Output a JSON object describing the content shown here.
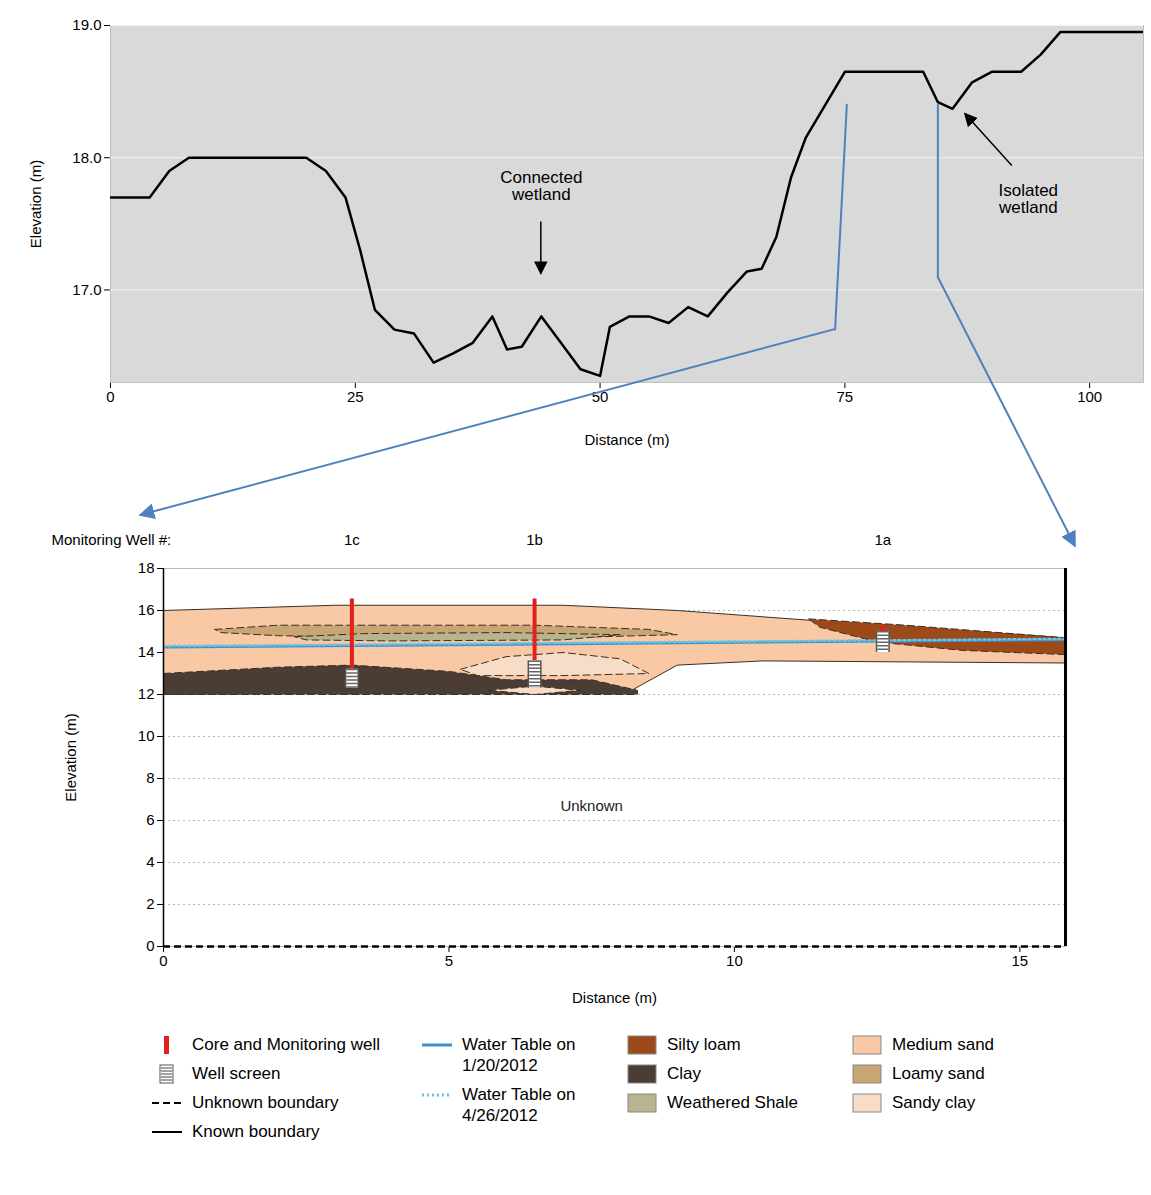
{
  "chart_data": [
    {
      "type": "line",
      "xlabel": "Distance (m)",
      "ylabel": "Elevation (m)",
      "xlim": [
        0,
        105.5
      ],
      "xticks": [
        0,
        25,
        50,
        75,
        100
      ],
      "ylim": [
        16.3,
        19
      ],
      "yticks": [
        17,
        18,
        19
      ],
      "grid": true,
      "color": "#000000",
      "x": [
        0,
        4,
        6,
        8,
        20,
        22,
        24,
        25.5,
        27,
        29,
        31,
        33,
        35,
        37,
        39,
        40.5,
        42,
        44,
        46,
        48,
        50,
        51,
        53,
        55,
        57,
        59,
        61,
        63,
        65,
        66.5,
        68,
        69.5,
        71,
        73,
        75,
        80,
        83,
        84.5,
        86,
        88,
        90,
        93,
        95,
        97,
        100,
        105.5
      ],
      "values": [
        17.7,
        17.7,
        17.9,
        18.0,
        18.0,
        17.9,
        17.7,
        17.3,
        16.85,
        16.7,
        16.67,
        16.45,
        16.52,
        16.6,
        16.8,
        16.55,
        16.57,
        16.8,
        16.6,
        16.4,
        16.35,
        16.72,
        16.8,
        16.8,
        16.75,
        16.87,
        16.8,
        16.98,
        17.14,
        17.16,
        17.4,
        17.85,
        18.15,
        18.4,
        18.65,
        18.65,
        18.65,
        18.42,
        18.37,
        18.57,
        18.65,
        18.65,
        18.78,
        18.95,
        18.95,
        18.95
      ],
      "annotations": [
        {
          "text": "Connected wetland",
          "x": 44,
          "y": 17.12
        },
        {
          "text": "Isolated wetland",
          "x": 87.3,
          "y": 18.33
        }
      ],
      "section_lines": [
        {
          "x": [
            75.2,
            74
          ],
          "y": [
            18.4,
            16.7
          ]
        },
        {
          "x": [
            84.5,
            84.5
          ],
          "y": [
            18.4,
            17.1
          ]
        }
      ]
    },
    {
      "type": "cross_section",
      "xlabel": "Distance (m)",
      "ylabel": "Elevation (m)",
      "xlim": [
        0,
        15.8
      ],
      "xticks": [
        0,
        5,
        10,
        15
      ],
      "ylim": [
        0,
        18
      ],
      "yticks": [
        0,
        2,
        4,
        6,
        8,
        10,
        12,
        14,
        16,
        18
      ],
      "grid": true,
      "legend": "bottom",
      "well_heading": "Monitoring Well #:",
      "wells": {
        "name": "Core and Monitoring well",
        "color": "#e3211c",
        "items": [
          {
            "label": "1c",
            "x": 3.3,
            "top": 16.55,
            "bottom": 13.2
          },
          {
            "label": "1b",
            "x": 6.5,
            "top": 16.55,
            "bottom": 13.6
          },
          {
            "label": "1a",
            "x": 12.6,
            "top": 15.3,
            "bottom": 15.0
          }
        ]
      },
      "screens": {
        "name": "Well screen",
        "items": [
          {
            "x": 3.3,
            "top": 13.2,
            "bottom": 12.3
          },
          {
            "x": 6.5,
            "top": 13.6,
            "bottom": 12.3
          },
          {
            "x": 12.6,
            "top": 15.0,
            "bottom": 14.0
          }
        ]
      },
      "boundaries": [
        {
          "name": "Unknown boundary",
          "line_style": "dashed"
        },
        {
          "name": "Known boundary",
          "line_style": "solid"
        }
      ],
      "series": [
        {
          "name": "Water Table on 1/20/2012",
          "color": "#3d8fd1",
          "line_style": "solid",
          "x": [
            0,
            15.8
          ],
          "y": [
            14.25,
            14.6
          ]
        },
        {
          "name": "Water Table on 4/26/2012",
          "color": "#6cc3e0",
          "line_style": "dotted",
          "x": [
            0,
            15.8
          ],
          "y": [
            14.3,
            14.65
          ]
        }
      ],
      "layers": [
        {
          "name": "Silty loam",
          "color": "#9c4a1a",
          "line_style": "dashed",
          "polygons": [
            {
              "x": [
                11.3,
                13,
                15.8,
                15.8,
                14,
                12.5,
                11.5
              ],
              "y": [
                15.6,
                15.3,
                14.7,
                13.9,
                14.1,
                14.5,
                15.2
              ]
            }
          ]
        },
        {
          "name": "Clay",
          "color": "#4b3d33",
          "line_style": "dashed",
          "polygons": [
            {
              "x": [
                0,
                2,
                3.3,
                5,
                6,
                7.5,
                8.3,
                8.3,
                0
              ],
              "y": [
                13.0,
                13.3,
                13.4,
                13.1,
                12.7,
                12.7,
                12.2,
                12.0,
                12.0
              ]
            }
          ]
        },
        {
          "name": "Weathered Shale",
          "color": "#b8b48f",
          "line_style": "dashed",
          "polygons": [
            {
              "x": [
                2.3,
                3.5,
                6,
                8,
                7,
                4,
                2.5
              ],
              "y": [
                14.75,
                14.9,
                14.95,
                14.85,
                14.6,
                14.55,
                14.6
              ]
            }
          ]
        },
        {
          "name": "Medium sand",
          "color": "#f8c9a4",
          "line_style": "solid",
          "polygons": [
            {
              "x": [
                0,
                3,
                7,
                9,
                11.5,
                15.8,
                15.8,
                10.5,
                9,
                8.2,
                0
              ],
              "y": [
                16.0,
                16.25,
                16.25,
                16.0,
                15.5,
                14.7,
                13.5,
                13.6,
                13.4,
                12.2,
                12.0
              ]
            }
          ]
        },
        {
          "name": "Loamy sand",
          "color": "#caa574",
          "line_style": "dashed",
          "polygons": [
            {
              "x": [
                0.9,
                2,
                4,
                6.5,
                8.5,
                9,
                7,
                4,
                2,
                1
              ],
              "y": [
                15.1,
                15.3,
                15.3,
                15.3,
                15.1,
                14.85,
                14.7,
                14.7,
                14.8,
                14.95
              ]
            }
          ]
        },
        {
          "name": "Sandy clay",
          "color": "#f7dcc8",
          "line_style": "dashed",
          "polygons": [
            {
              "x": [
                5.2,
                6,
                7,
                8,
                8.5,
                7,
                5.5
              ],
              "y": [
                13.2,
                13.8,
                14.0,
                13.7,
                13.0,
                12.9,
                12.9
              ]
            },
            {
              "x": [
                5.7,
                6.5,
                7.3,
                6.5
              ],
              "y": [
                12.2,
                12.4,
                12.2,
                12.0
              ]
            }
          ]
        }
      ],
      "annotations": [
        {
          "text": "Unknown",
          "x": 7.5,
          "y": 6.7
        }
      ]
    }
  ]
}
